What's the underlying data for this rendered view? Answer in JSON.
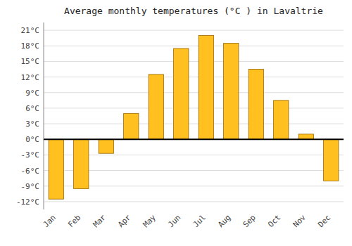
{
  "chart_data": {
    "type": "bar",
    "title": "Average monthly temperatures (°C ) in Lavaltrie",
    "categories": [
      "Jan",
      "Feb",
      "Mar",
      "Apr",
      "May",
      "Jun",
      "Jul",
      "Aug",
      "Sep",
      "Oct",
      "Nov",
      "Dec"
    ],
    "values": [
      -11.5,
      -9.5,
      -2.7,
      5.0,
      12.5,
      17.5,
      20.0,
      18.5,
      13.5,
      7.5,
      1.0,
      -8.0
    ],
    "color": "#FFC020",
    "ylim": [
      -13.5,
      22.5
    ],
    "yticks": [
      {
        "value": -12,
        "label": "-12°C"
      },
      {
        "value": -9,
        "label": "-9°C"
      },
      {
        "value": -6,
        "label": "-6°C"
      },
      {
        "value": -3,
        "label": "-3°C"
      },
      {
        "value": 0,
        "label": "0°C"
      },
      {
        "value": 3,
        "label": "3°C"
      },
      {
        "value": 6,
        "label": "6°C"
      },
      {
        "value": 9,
        "label": "9°C"
      },
      {
        "value": 12,
        "label": "12°C"
      },
      {
        "value": 15,
        "label": "15°C"
      },
      {
        "value": 18,
        "label": "18°C"
      },
      {
        "value": 21,
        "label": "21°C"
      }
    ],
    "grid": true
  }
}
